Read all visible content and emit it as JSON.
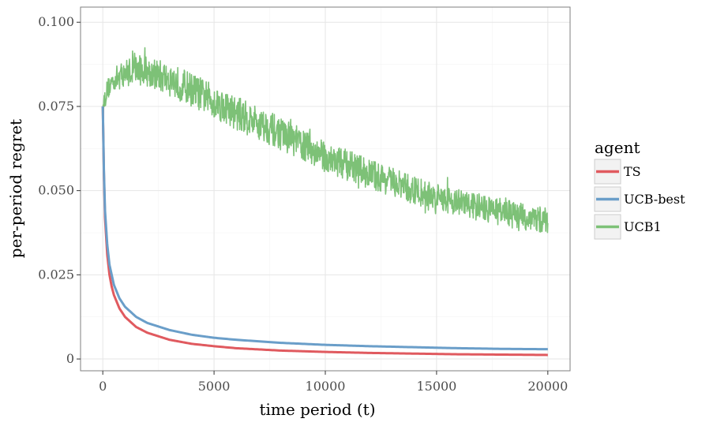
{
  "chart_data": {
    "type": "line",
    "title": "",
    "xlabel": "time period (t)",
    "ylabel": "per-period regret",
    "xlim": [
      -1000,
      21000
    ],
    "ylim": [
      -0.0035,
      0.1045
    ],
    "xticks": [
      0,
      5000,
      10000,
      15000,
      20000
    ],
    "xtick_labels": [
      "0",
      "5000",
      "10000",
      "15000",
      "20000"
    ],
    "yticks": [
      0,
      0.025,
      0.05,
      0.075,
      0.1
    ],
    "ytick_labels": [
      "0",
      "0.025",
      "0.050",
      "0.075",
      "0.100"
    ],
    "grid": true,
    "legend": {
      "title": "agent",
      "placement": "right"
    },
    "series": [
      {
        "name": "TS",
        "color": "#e05a5f",
        "x": [
          0,
          50,
          100,
          200,
          300,
          400,
          500,
          750,
          1000,
          1500,
          2000,
          3000,
          4000,
          5000,
          6000,
          8000,
          10000,
          12000,
          14000,
          16000,
          18000,
          20000
        ],
        "y": [
          0.075,
          0.055,
          0.042,
          0.031,
          0.025,
          0.0215,
          0.019,
          0.015,
          0.0125,
          0.0095,
          0.0078,
          0.0057,
          0.0045,
          0.0038,
          0.0032,
          0.0025,
          0.0021,
          0.0018,
          0.0016,
          0.0014,
          0.0013,
          0.0012
        ]
      },
      {
        "name": "UCB-best",
        "color": "#6a9ec9",
        "x": [
          0,
          50,
          100,
          200,
          300,
          400,
          500,
          750,
          1000,
          1500,
          2000,
          3000,
          4000,
          5000,
          6000,
          8000,
          10000,
          12000,
          14000,
          16000,
          18000,
          20000
        ],
        "y": [
          0.075,
          0.056,
          0.044,
          0.034,
          0.028,
          0.025,
          0.022,
          0.018,
          0.0155,
          0.0125,
          0.0107,
          0.0086,
          0.0072,
          0.0063,
          0.0057,
          0.0048,
          0.0042,
          0.0038,
          0.0035,
          0.0032,
          0.003,
          0.0029
        ]
      },
      {
        "name": "UCB1",
        "color": "#7dc177",
        "x": [
          0,
          200,
          500,
          1000,
          1500,
          2000,
          3000,
          4000,
          5000,
          6000,
          7000,
          8000,
          9000,
          10000,
          11000,
          12000,
          13000,
          14000,
          15000,
          16000,
          17000,
          18000,
          19000,
          20000
        ],
        "y": [
          0.075,
          0.08,
          0.083,
          0.085,
          0.086,
          0.0855,
          0.083,
          0.08,
          0.0765,
          0.073,
          0.07,
          0.067,
          0.0635,
          0.06,
          0.0575,
          0.055,
          0.0525,
          0.05,
          0.048,
          0.0465,
          0.045,
          0.0435,
          0.042,
          0.041
        ],
        "band_y": [
          0.006,
          0.006,
          0.007,
          0.008,
          0.009,
          0.009,
          0.01,
          0.01,
          0.01,
          0.01,
          0.01,
          0.0095,
          0.0095,
          0.009,
          0.009,
          0.009,
          0.0085,
          0.0085,
          0.008,
          0.008,
          0.008,
          0.008,
          0.008,
          0.008
        ]
      }
    ]
  }
}
